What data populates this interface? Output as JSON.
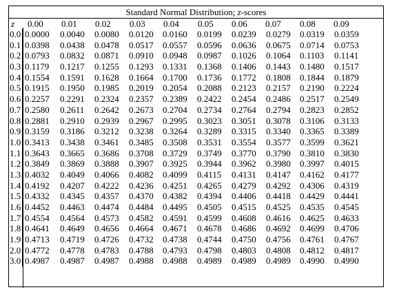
{
  "table": {
    "title_prefix": "Standard Normal Distribution; ",
    "title_italic": "z",
    "title_suffix": "-scores",
    "z_header": "z",
    "columns": [
      "0.00",
      "0.01",
      "0.02",
      "0.03",
      "0.04",
      "0.05",
      "0.06",
      "0.07",
      "0.08",
      "0.09"
    ],
    "rows": [
      {
        "z": "0.0",
        "values": [
          "0.0000",
          "0.0040",
          "0.0080",
          "0.0120",
          "0.0160",
          "0.0199",
          "0.0239",
          "0.0279",
          "0.0319",
          "0.0359"
        ]
      },
      {
        "z": "0.1",
        "values": [
          "0.0398",
          "0.0438",
          "0.0478",
          "0.0517",
          "0.0557",
          "0.0596",
          "0.0636",
          "0.0675",
          "0.0714",
          "0.0753"
        ]
      },
      {
        "z": "0.2",
        "values": [
          "0.0793",
          "0.0832",
          "0.0871",
          "0.0910",
          "0.0948",
          "0.0987",
          "0.1026",
          "0.1064",
          "0.1103",
          "0.1141"
        ]
      },
      {
        "z": "0.3",
        "values": [
          "0.1179",
          "0.1217",
          "0.1255",
          "0.1293",
          "0.1331",
          "0.1368",
          "0.1406",
          "0.1443",
          "0.1480",
          "0.1517"
        ]
      },
      {
        "z": "0.4",
        "values": [
          "0.1554",
          "0.1591",
          "0.1628",
          "0.1664",
          "0.1700",
          "0.1736",
          "0.1772",
          "0.1808",
          "0.1844",
          "0.1879"
        ]
      },
      {
        "z": "0.5",
        "values": [
          "0.1915",
          "0.1950",
          "0.1985",
          "0.2019",
          "0.2054",
          "0.2088",
          "0.2123",
          "0.2157",
          "0.2190",
          "0.2224"
        ]
      },
      {
        "z": "0.6",
        "values": [
          "0.2257",
          "0.2291",
          "0.2324",
          "0.2357",
          "0.2389",
          "0.2422",
          "0.2454",
          "0.2486",
          "0.2517",
          "0.2549"
        ]
      },
      {
        "z": "0.7",
        "values": [
          "0.2580",
          "0.2611",
          "0.2642",
          "0.2673",
          "0.2704",
          "0.2734",
          "0.2764",
          "0.2794",
          "0.2823",
          "0.2852"
        ]
      },
      {
        "z": "0.8",
        "values": [
          "0.2881",
          "0.2910",
          "0.2939",
          "0.2967",
          "0.2995",
          "0.3023",
          "0.3051",
          "0.3078",
          "0.3106",
          "0.3133"
        ]
      },
      {
        "z": "0.9",
        "values": [
          "0.3159",
          "0.3186",
          "0.3212",
          "0.3238",
          "0.3264",
          "0.3289",
          "0.3315",
          "0.3340",
          "0.3365",
          "0.3389"
        ]
      },
      {
        "z": "1.0",
        "values": [
          "0.3413",
          "0.3438",
          "0.3461",
          "0.3485",
          "0.3508",
          "0.3531",
          "0.3554",
          "0.3577",
          "0.3599",
          "0.3621"
        ]
      },
      {
        "z": "1.1",
        "values": [
          "0.3643",
          "0.3665",
          "0.3686",
          "0.3708",
          "0.3729",
          "0.3749",
          "0.3770",
          "0.3790",
          "0.3810",
          "0.3830"
        ]
      },
      {
        "z": "1.2",
        "values": [
          "0.3849",
          "0.3869",
          "0.3888",
          "0.3907",
          "0.3925",
          "0.3944",
          "0.3962",
          "0.3980",
          "0.3997",
          "0.4015"
        ]
      },
      {
        "z": "1.3",
        "values": [
          "0.4032",
          "0.4049",
          "0.4066",
          "0.4082",
          "0.4099",
          "0.4115",
          "0.4131",
          "0.4147",
          "0.4162",
          "0.4177"
        ]
      },
      {
        "z": "1.4",
        "values": [
          "0.4192",
          "0.4207",
          "0.4222",
          "0.4236",
          "0.4251",
          "0.4265",
          "0.4279",
          "0.4292",
          "0.4306",
          "0.4319"
        ]
      },
      {
        "z": "1.5",
        "values": [
          "0.4332",
          "0.4345",
          "0.4357",
          "0.4370",
          "0.4382",
          "0.4394",
          "0.4406",
          "0.4418",
          "0.4429",
          "0.4441"
        ]
      },
      {
        "z": "1.6",
        "values": [
          "0.4452",
          "0.4463",
          "0.4474",
          "0.4484",
          "0.4495",
          "0.4505",
          "0.4515",
          "0.4525",
          "0.4535",
          "0.4545"
        ]
      },
      {
        "z": "1.7",
        "values": [
          "0.4554",
          "0.4564",
          "0.4573",
          "0.4582",
          "0.4591",
          "0.4599",
          "0.4608",
          "0.4616",
          "0.4625",
          "0.4633"
        ]
      },
      {
        "z": "1.8",
        "values": [
          "0.4641",
          "0.4649",
          "0.4656",
          "0.4664",
          "0.4671",
          "0.4678",
          "0.4686",
          "0.4692",
          "0.4699",
          "0.4706"
        ]
      },
      {
        "z": "1.9",
        "values": [
          "0.4713",
          "0.4719",
          "0.4726",
          "0.4732",
          "0.4738",
          "0.4744",
          "0.4750",
          "0.4756",
          "0.4761",
          "0.4767"
        ]
      },
      {
        "z": "2.0",
        "values": [
          "0.4772",
          "0.4778",
          "0.4783",
          "0.4788",
          "0.4793",
          "0.4798",
          "0.4803",
          "0.4808",
          "0.4812",
          "0.4817"
        ]
      },
      {
        "z": "3.0",
        "values": [
          "0.4987",
          "0.4987",
          "0.4987",
          "0.4988",
          "0.4988",
          "0.4989",
          "0.4989",
          "0.4989",
          "0.4990",
          "0.4990"
        ]
      }
    ]
  }
}
